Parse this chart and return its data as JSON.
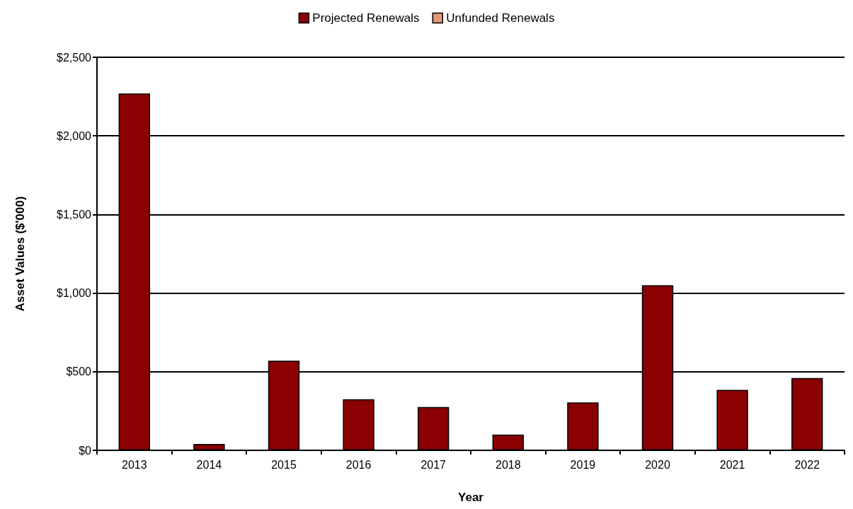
{
  "chart_data": {
    "type": "bar",
    "xlabel": "Year",
    "ylabel": "Asset Values ($'000)",
    "categories": [
      "2013",
      "2014",
      "2015",
      "2016",
      "2017",
      "2018",
      "2019",
      "2020",
      "2021",
      "2022"
    ],
    "series": [
      {
        "name": "Projected Renewals",
        "color": "#8b0000",
        "values": [
          2270,
          40,
          570,
          325,
          275,
          100,
          305,
          1050,
          385,
          460
        ]
      },
      {
        "name": "Unfunded Renewals",
        "color": "#e8967a",
        "values": [
          null,
          null,
          null,
          null,
          null,
          null,
          null,
          null,
          null,
          null
        ]
      }
    ],
    "stacked": true,
    "ylim": [
      0,
      2500
    ],
    "yticks": [
      {
        "value": 0,
        "label": "$0"
      },
      {
        "value": 500,
        "label": "$500"
      },
      {
        "value": 1000,
        "label": "$1,000"
      },
      {
        "value": 1500,
        "label": "$1,500"
      },
      {
        "value": 2000,
        "label": "$2,000"
      },
      {
        "value": 2500,
        "label": "$2,500"
      }
    ],
    "grid": "y",
    "legend": "top"
  }
}
